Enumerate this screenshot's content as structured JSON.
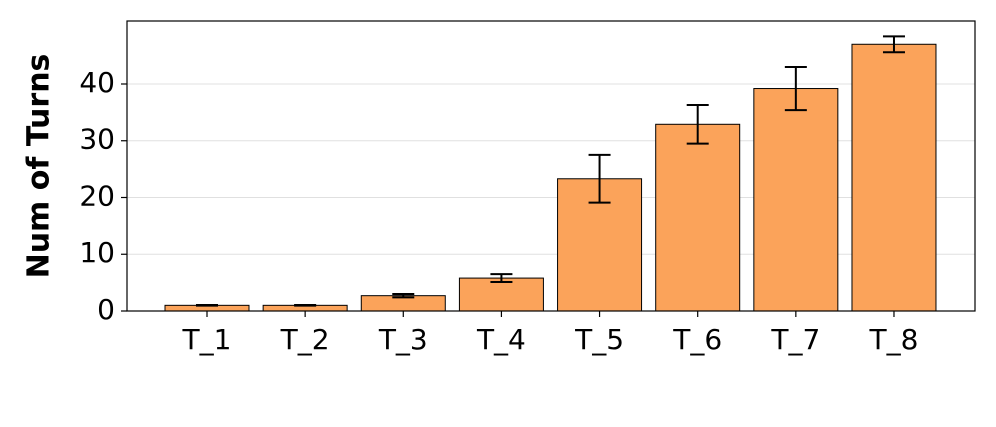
{
  "chart_data": {
    "type": "bar",
    "y_label": "Num of Turns",
    "categories": [
      "T_1",
      "T_2",
      "T_3",
      "T_4",
      "T_5",
      "T_6",
      "T_7",
      "T_8"
    ],
    "values": [
      1,
      1,
      2.7,
      5.8,
      23.3,
      32.9,
      39.2,
      47.0
    ],
    "errors": [
      0.05,
      0.05,
      0.3,
      0.7,
      4.2,
      3.4,
      3.8,
      1.4
    ],
    "color": "#fba35a",
    "ylim": [
      0,
      51.1
    ],
    "yticks": [
      0,
      10,
      20,
      30,
      40
    ],
    "grid": true
  }
}
